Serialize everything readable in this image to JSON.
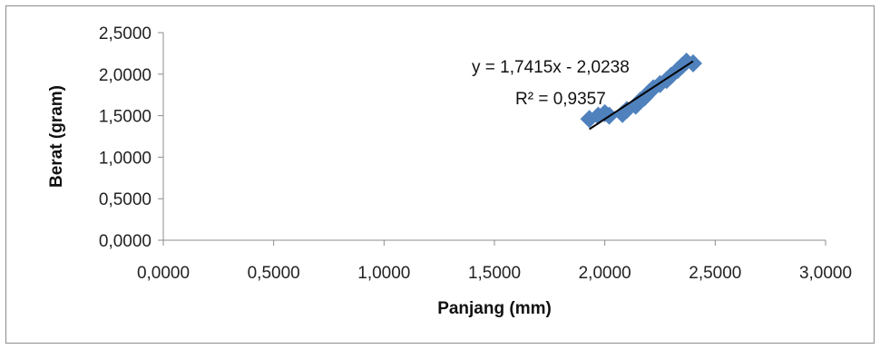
{
  "chart_data": {
    "type": "scatter",
    "title": "",
    "xlabel": "Panjang (mm)",
    "ylabel": "Berat (gram)",
    "xlim": [
      0,
      3
    ],
    "ylim": [
      0,
      2.5
    ],
    "x_ticks": [
      0,
      0.5,
      1,
      1.5,
      2,
      2.5,
      3
    ],
    "y_ticks": [
      0,
      0.5,
      1,
      1.5,
      2,
      2.5
    ],
    "x_tick_labels": [
      "0,0000",
      "0,5000",
      "1,0000",
      "1,5000",
      "2,0000",
      "2,5000",
      "3,0000"
    ],
    "y_tick_labels": [
      "0,0000",
      "0,5000",
      "1,0000",
      "1,5000",
      "2,0000",
      "2,5000"
    ],
    "grid": false,
    "marker_color": "#4f81bd",
    "trendline_color": "#000000",
    "points": [
      {
        "x": 1.93,
        "y": 1.46
      },
      {
        "x": 1.97,
        "y": 1.5
      },
      {
        "x": 2.0,
        "y": 1.53
      },
      {
        "x": 2.02,
        "y": 1.5
      },
      {
        "x": 2.08,
        "y": 1.52
      },
      {
        "x": 2.1,
        "y": 1.57
      },
      {
        "x": 2.14,
        "y": 1.62
      },
      {
        "x": 2.16,
        "y": 1.68
      },
      {
        "x": 2.18,
        "y": 1.72
      },
      {
        "x": 2.2,
        "y": 1.78
      },
      {
        "x": 2.22,
        "y": 1.83
      },
      {
        "x": 2.25,
        "y": 1.88
      },
      {
        "x": 2.28,
        "y": 1.93
      },
      {
        "x": 2.3,
        "y": 1.98
      },
      {
        "x": 2.33,
        "y": 2.05
      },
      {
        "x": 2.35,
        "y": 2.1
      },
      {
        "x": 2.37,
        "y": 2.15
      },
      {
        "x": 2.4,
        "y": 2.13
      }
    ],
    "trendline": {
      "slope": 1.7415,
      "intercept": -2.0238,
      "x_range": [
        1.93,
        2.4
      ],
      "equation": "y = 1,7415x - 2,0238",
      "r_squared": "R² = 0,9357"
    }
  }
}
